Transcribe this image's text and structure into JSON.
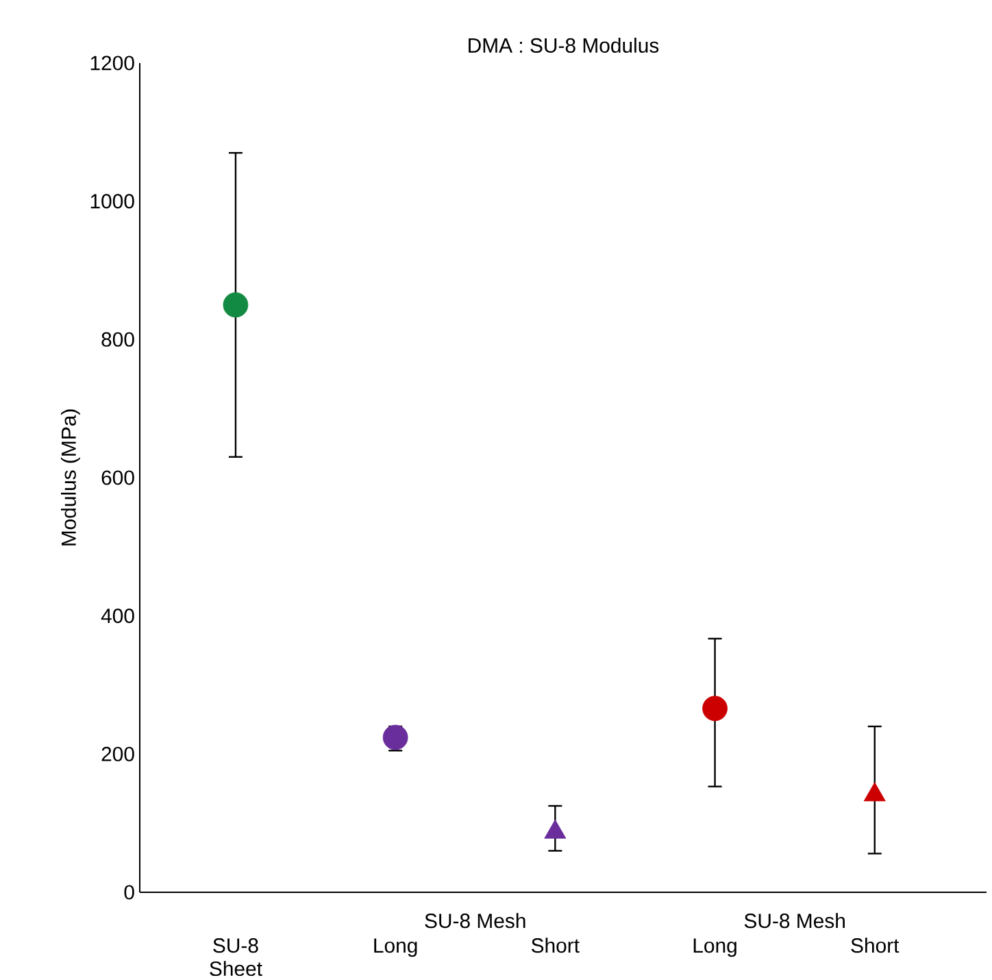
{
  "chart_data": {
    "type": "scatter",
    "title": "DMA : SU-8 Modulus",
    "ylabel": "Modulus (MPa)",
    "categories": [
      "SU-8 Sheet",
      "Long",
      "Short",
      "Long",
      "Short"
    ],
    "annotations": [
      "SU-8 Mesh",
      "SU-8 Mesh"
    ],
    "ylim": [
      0,
      1200
    ],
    "yticks": [
      0,
      200,
      400,
      600,
      800,
      1000,
      1200
    ],
    "grid": false,
    "series": [
      {
        "color": "#138a43",
        "marker": "circle",
        "values": [
          850,
          null,
          null,
          null,
          null
        ],
        "errors": [
          [
            630,
            1070
          ],
          null,
          null,
          null,
          null
        ]
      },
      {
        "color": "#6a2d9c",
        "marker": "circle",
        "values": [
          null,
          224,
          null,
          null,
          null
        ],
        "errors": [
          null,
          [
            205,
            240
          ],
          null,
          null,
          null
        ]
      },
      {
        "color": "#6a2d9c",
        "marker": "triangle",
        "values": [
          null,
          null,
          87,
          null,
          null
        ],
        "errors": [
          null,
          null,
          [
            60,
            125
          ],
          null,
          null
        ]
      },
      {
        "color": "#cc0000",
        "marker": "circle",
        "values": [
          null,
          null,
          null,
          266,
          null
        ],
        "errors": [
          null,
          null,
          null,
          [
            153,
            367
          ],
          null
        ]
      },
      {
        "color": "#cc0000",
        "marker": "triangle",
        "values": [
          null,
          null,
          null,
          null,
          141
        ],
        "errors": [
          null,
          null,
          null,
          null,
          [
            56,
            240
          ]
        ]
      }
    ]
  }
}
